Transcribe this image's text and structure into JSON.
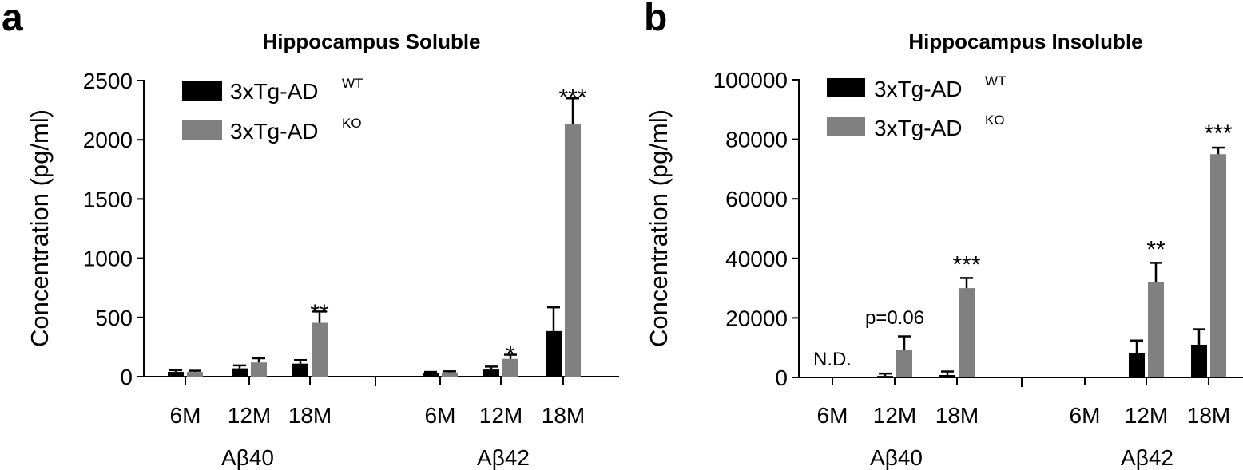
{
  "chart_data": [
    {
      "type": "bar",
      "panel": "a",
      "title": "Hippocampus Soluble",
      "ylabel": "Concentration (pg/ml)",
      "ylim": [
        0,
        2500
      ],
      "yticks": [
        "0",
        "500",
        "1000",
        "1500",
        "2000",
        "2500"
      ],
      "legend_position": "top-left",
      "groups": [
        {
          "label": "Aβ40",
          "categories": [
            "6M",
            "12M",
            "18M"
          ]
        },
        {
          "label": "Aβ42",
          "categories": [
            "6M",
            "12M",
            "18M"
          ]
        }
      ],
      "series": [
        {
          "name": "3xTg-AD",
          "superscript": "WT",
          "color": "#000000",
          "values": [
            40,
            70,
            110,
            30,
            60,
            385
          ],
          "errors": [
            15,
            25,
            30,
            10,
            25,
            200
          ]
        },
        {
          "name": "3xTg-AD",
          "superscript": "KO",
          "color": "#808080",
          "values": [
            40,
            120,
            455,
            35,
            150,
            2130
          ],
          "errors": [
            10,
            35,
            95,
            10,
            35,
            220
          ]
        }
      ],
      "annotations": [
        {
          "text": "**",
          "index": 2,
          "value": 540
        },
        {
          "text": "*",
          "index": 4,
          "value": 190
        },
        {
          "text": "***",
          "index": 5,
          "value": 2360
        }
      ]
    },
    {
      "type": "bar",
      "panel": "b",
      "title": "Hippocampus Insoluble",
      "ylabel": "Concentration (pg/ml)",
      "ylim": [
        0,
        100000
      ],
      "yticks": [
        "0",
        "20000",
        "40000",
        "60000",
        "80000",
        "100000"
      ],
      "legend_position": "top-left",
      "groups": [
        {
          "label": "Aβ40",
          "categories": [
            "6M",
            "12M",
            "18M"
          ]
        },
        {
          "label": "Aβ42",
          "categories": [
            "6M",
            "12M",
            "18M"
          ]
        }
      ],
      "series": [
        {
          "name": "3xTg-AD",
          "superscript": "WT",
          "color": "#000000",
          "values": [
            0,
            500,
            800,
            200,
            8200,
            11000
          ],
          "errors": [
            0,
            800,
            1200,
            0,
            4200,
            5200
          ]
        },
        {
          "name": "3xTg-AD",
          "superscript": "KO",
          "color": "#808080",
          "values": [
            0,
            9400,
            30000,
            200,
            32000,
            75000
          ],
          "errors": [
            0,
            4400,
            3400,
            0,
            6500,
            2200
          ]
        }
      ],
      "annotations": [
        {
          "text": "N.D.",
          "index": 0,
          "value": 4000,
          "small": true
        },
        {
          "text": "p=0.06",
          "index": 1,
          "value": 18000,
          "small": true
        },
        {
          "text": "***",
          "index": 2,
          "value": 38000
        },
        {
          "text": "**",
          "index": 4,
          "value": 43000
        },
        {
          "text": "***",
          "index": 5,
          "value": 82000
        }
      ]
    }
  ]
}
